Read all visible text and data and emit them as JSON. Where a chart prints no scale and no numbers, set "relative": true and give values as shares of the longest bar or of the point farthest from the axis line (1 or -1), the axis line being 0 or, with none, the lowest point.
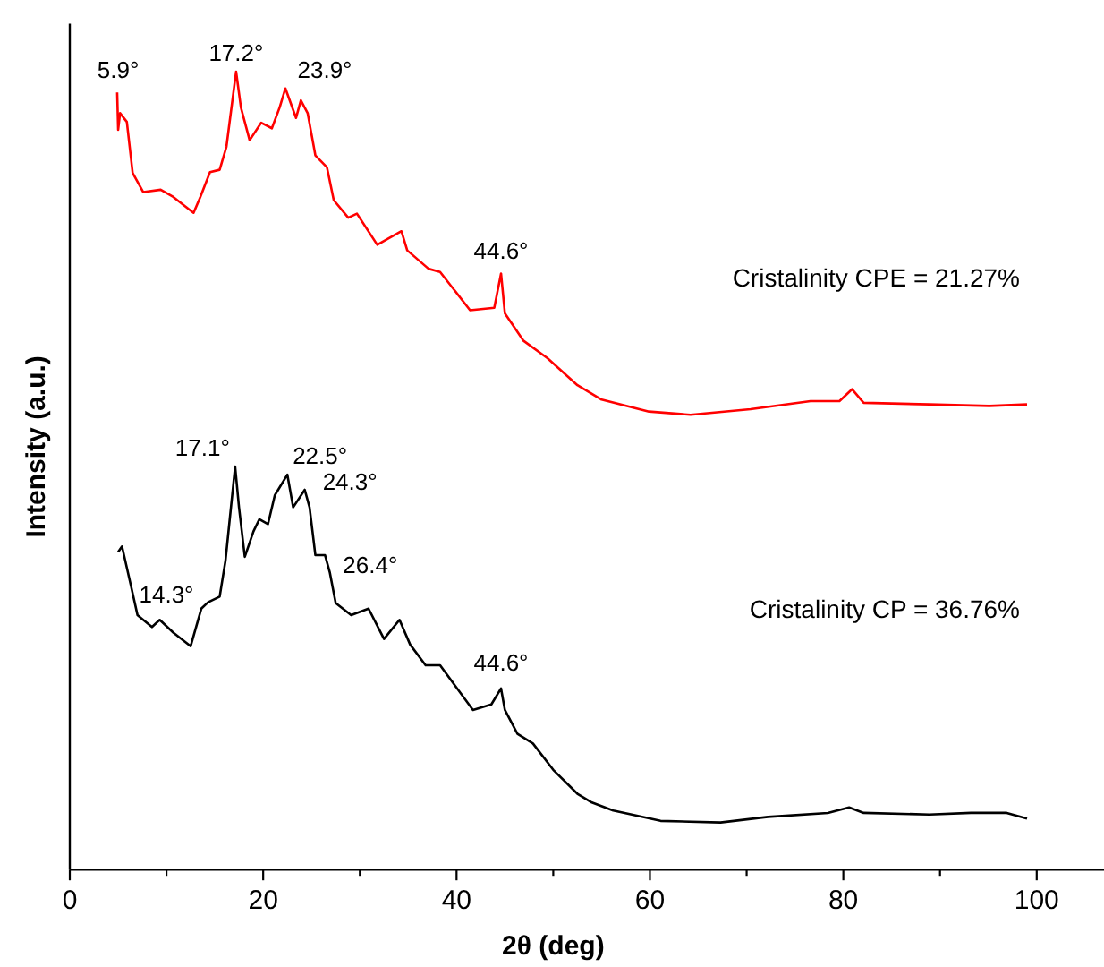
{
  "chart_data": {
    "type": "line",
    "relative": true,
    "xlabel": "2θ (deg)",
    "ylabel": "Intensity (a.u.)",
    "xlim": [
      0,
      107
    ],
    "xticks": [
      0,
      {
        "value": 10,
        "label": null
      },
      20,
      {
        "value": 30,
        "label": null
      },
      40,
      {
        "value": 50,
        "label": null
      },
      60,
      {
        "value": 70,
        "label": null
      },
      80,
      {
        "value": 90,
        "label": null
      },
      100
    ],
    "tick_labels": "x",
    "grid": false,
    "marker": "none",
    "line_style": "solid",
    "series": [
      {
        "color": "#ff0000",
        "x": [
          4.9,
          5.0,
          5.2,
          5.9,
          6.5,
          7.6,
          9.4,
          10.7,
          12.8,
          13.5,
          14.5,
          15.5,
          16.2,
          17.2,
          17.7,
          18.6,
          19.8,
          20.9,
          21.7,
          22.3,
          23.4,
          23.9,
          24.6,
          25.4,
          26.6,
          27.3,
          28.8,
          29.7,
          31.8,
          34.3,
          34.9,
          37.1,
          38.3,
          41.4,
          43.9,
          44.6,
          45.0,
          46.9,
          49.4,
          52.5,
          55.0,
          59.9,
          64.2,
          70.4,
          76.6,
          79.6,
          80.9,
          82.1,
          88.9,
          95.1,
          99.0
        ],
        "values": [
          0.974,
          0.927,
          0.948,
          0.937,
          0.873,
          0.849,
          0.852,
          0.843,
          0.823,
          0.843,
          0.874,
          0.877,
          0.906,
          1,
          0.955,
          0.914,
          0.936,
          0.929,
          0.955,
          0.979,
          0.942,
          0.964,
          0.948,
          0.895,
          0.88,
          0.839,
          0.817,
          0.822,
          0.783,
          0.8,
          0.776,
          0.753,
          0.749,
          0.701,
          0.704,
          0.747,
          0.697,
          0.663,
          0.641,
          0.607,
          0.589,
          0.574,
          0.57,
          0.577,
          0.587,
          0.587,
          0.602,
          0.585,
          0.583,
          0.581,
          0.583
        ]
      },
      {
        "color": "#000000",
        "x": [
          5.0,
          5.4,
          6.3,
          7.0,
          8.5,
          9.3,
          10.7,
          12.5,
          13.6,
          14.3,
          15.5,
          16.1,
          17.1,
          17.5,
          18.1,
          19.0,
          19.6,
          20.5,
          21.2,
          22.5,
          23.1,
          24.3,
          24.8,
          25.4,
          26.4,
          26.9,
          27.5,
          29.1,
          30.9,
          32.5,
          34.1,
          35.2,
          36.8,
          38.3,
          41.7,
          43.6,
          44.6,
          45.0,
          46.3,
          47.9,
          50.0,
          52.5,
          54.0,
          56.2,
          61.1,
          67.3,
          72.2,
          78.4,
          80.6,
          82.1,
          88.9,
          93.2,
          96.9,
          99.0
        ],
        "values": [
          0.398,
          0.405,
          0.357,
          0.319,
          0.304,
          0.313,
          0.297,
          0.28,
          0.327,
          0.335,
          0.342,
          0.387,
          0.505,
          0.454,
          0.392,
          0.424,
          0.439,
          0.433,
          0.469,
          0.495,
          0.454,
          0.476,
          0.454,
          0.394,
          0.394,
          0.372,
          0.334,
          0.319,
          0.327,
          0.289,
          0.313,
          0.282,
          0.256,
          0.256,
          0.2,
          0.207,
          0.227,
          0.2,
          0.17,
          0.158,
          0.125,
          0.095,
          0.084,
          0.074,
          0.061,
          0.059,
          0.066,
          0.071,
          0.078,
          0.071,
          0.069,
          0.071,
          0.071,
          0.064
        ]
      }
    ],
    "annotations": [
      {
        "text": "5.9°",
        "x": 5.0,
        "y": 0.974
      },
      {
        "text": "17.2°",
        "x": 17.2,
        "y": 1
      },
      {
        "text": "23.9°",
        "x": 22.3,
        "y": 0.979
      },
      {
        "text": "44.6°",
        "x": 44.6,
        "y": 0.747
      },
      {
        "text": "14.3°",
        "x": 14.3,
        "y": 0.335
      },
      {
        "text": "17.1°",
        "x": 17.1,
        "y": 0.505
      },
      {
        "text": "22.5°",
        "x": 22.5,
        "y": 0.495
      },
      {
        "text": "24.3°",
        "x": 24.3,
        "y": 0.476
      },
      {
        "text": "26.4°",
        "x": 26.4,
        "y": 0.394
      },
      {
        "text": "44.6°",
        "x": 44.6,
        "y": 0.227
      },
      "Cristalinity CPE = 21.27%",
      "Cristalinity CP = 36.76%"
    ]
  }
}
